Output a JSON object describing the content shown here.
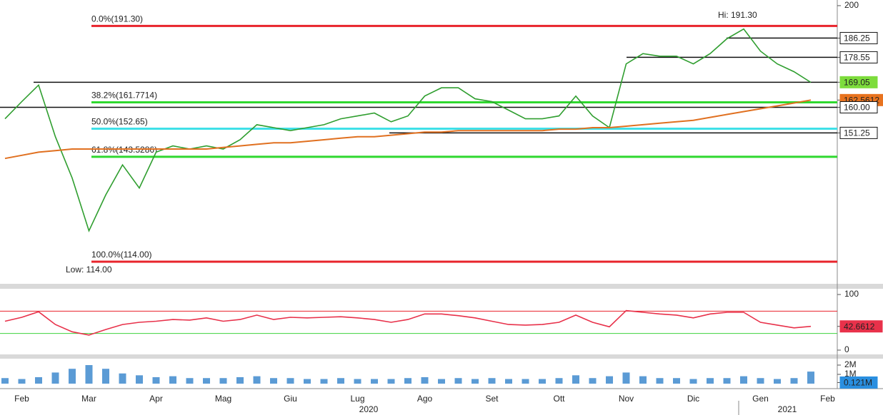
{
  "chart_data": [
    {
      "type": "line",
      "log_scale": true,
      "ylim": [
        108.6,
        202.5
      ],
      "yticks": [
        200,
        186.25,
        178.55,
        169.05,
        162.5612,
        {
          "value": 160,
          "label": "160.00"
        },
        151.25
      ],
      "series": [
        {
          "color": "#2f9e2f",
          "values": [
            156,
            162,
            168,
            150,
            137,
            122,
            132,
            141,
            134,
            145,
            147,
            146,
            147,
            146,
            149,
            154,
            153,
            152,
            153,
            154,
            156,
            157,
            158,
            155,
            157,
            164,
            167,
            167,
            163,
            162,
            159,
            156,
            156,
            157,
            164,
            157,
            153,
            176,
            180,
            179,
            179,
            176,
            180,
            186,
            190,
            181,
            176,
            173,
            169,
            null
          ]
        },
        {
          "color": "#e07020",
          "values": [
            143,
            144,
            145,
            145.5,
            146,
            146,
            146,
            146,
            146,
            146,
            146,
            146,
            146,
            146.5,
            147,
            147.5,
            148,
            148,
            148.5,
            149,
            149.5,
            150,
            150,
            150.5,
            151,
            151.5,
            151.5,
            152,
            152,
            152,
            152,
            152,
            152,
            152.5,
            152.5,
            153,
            153,
            153.5,
            154,
            154.5,
            155,
            155.5,
            156.5,
            157.5,
            158.5,
            159.5,
            160.5,
            161.5,
            162.56,
            null
          ]
        }
      ],
      "fib_levels": [
        {
          "value": 191.3,
          "label": "0.0%(191.30)",
          "color": "#e8232b",
          "text_color": "#e8232b"
        },
        {
          "value": 161.7714,
          "label": "38.2%(161.7714)",
          "color": "#2fd82f",
          "text_color": "#8cc63f"
        },
        {
          "value": 152.65,
          "label": "50.0%(152.65)",
          "color": "#3fe0e8",
          "text_color": "#3fd0e0"
        },
        {
          "value": 143.5286,
          "label": "61.8%(143.5286)",
          "color": "#2fd82f",
          "text_color": "#8cc63f"
        },
        {
          "value": 114,
          "label": "100.0%(114.00)",
          "color": "#e8232b",
          "text_color": "#e8232b"
        }
      ],
      "annotations": [
        "Hi: 191.30",
        "Low: 114.00"
      ],
      "annotation_color": "#8cc63f"
    },
    {
      "type": "line",
      "ylim": [
        -7.7,
        110.3
      ],
      "yticks": [
        100,
        0,
        42.6612
      ],
      "series": [
        {
          "color": "#e8314a",
          "values": [
            52,
            59,
            69,
            46,
            33,
            27,
            37,
            46,
            50,
            52,
            55,
            54,
            58,
            52,
            55,
            63,
            55,
            59,
            58,
            59,
            60,
            58,
            55,
            50,
            55,
            65,
            65,
            62,
            58,
            52,
            46,
            45,
            46,
            50,
            63,
            50,
            42,
            71,
            68,
            65,
            63,
            58,
            65,
            68,
            68,
            50,
            45,
            40,
            42.66,
            null
          ]
        }
      ],
      "hlines": [
        {
          "value": 70,
          "color": "#e8232b"
        },
        {
          "value": 30,
          "color": "#3cd23c"
        }
      ]
    },
    {
      "type": "bar",
      "categories": [
        null,
        "Feb",
        null,
        null,
        null,
        "Mar",
        null,
        null,
        null,
        "Apr",
        null,
        null,
        null,
        "Mag",
        null,
        null,
        null,
        "Giu",
        null,
        null,
        null,
        "Lug",
        null,
        null,
        null,
        "Ago",
        null,
        null,
        null,
        "Set",
        null,
        null,
        null,
        "Ott",
        null,
        null,
        null,
        "Nov",
        null,
        null,
        null,
        "Dic",
        null,
        null,
        null,
        "Gen",
        null,
        null,
        null,
        "Feb"
      ],
      "years": [
        "2020",
        "2021"
      ],
      "values": [
        600000,
        500000,
        700000,
        1200000,
        1600000,
        2000000,
        1600000,
        1100000,
        900000,
        700000,
        800000,
        600000,
        600000,
        600000,
        700000,
        800000,
        600000,
        600000,
        500000,
        500000,
        600000,
        500000,
        500000,
        500000,
        600000,
        700000,
        500000,
        600000,
        500000,
        600000,
        500000,
        500000,
        500000,
        600000,
        900000,
        600000,
        800000,
        1200000,
        800000,
        600000,
        600000,
        500000,
        600000,
        600000,
        800000,
        600000,
        500000,
        600000,
        1300000,
        null
      ],
      "color": "#5b9bd5",
      "ylim": [
        -380000,
        2690000
      ],
      "yticks": [
        {
          "value": 2000000,
          "label": "2M"
        },
        {
          "value": 1000000,
          "label": "1M"
        },
        {
          "value": 121000,
          "label": "0.121M"
        }
      ]
    }
  ]
}
